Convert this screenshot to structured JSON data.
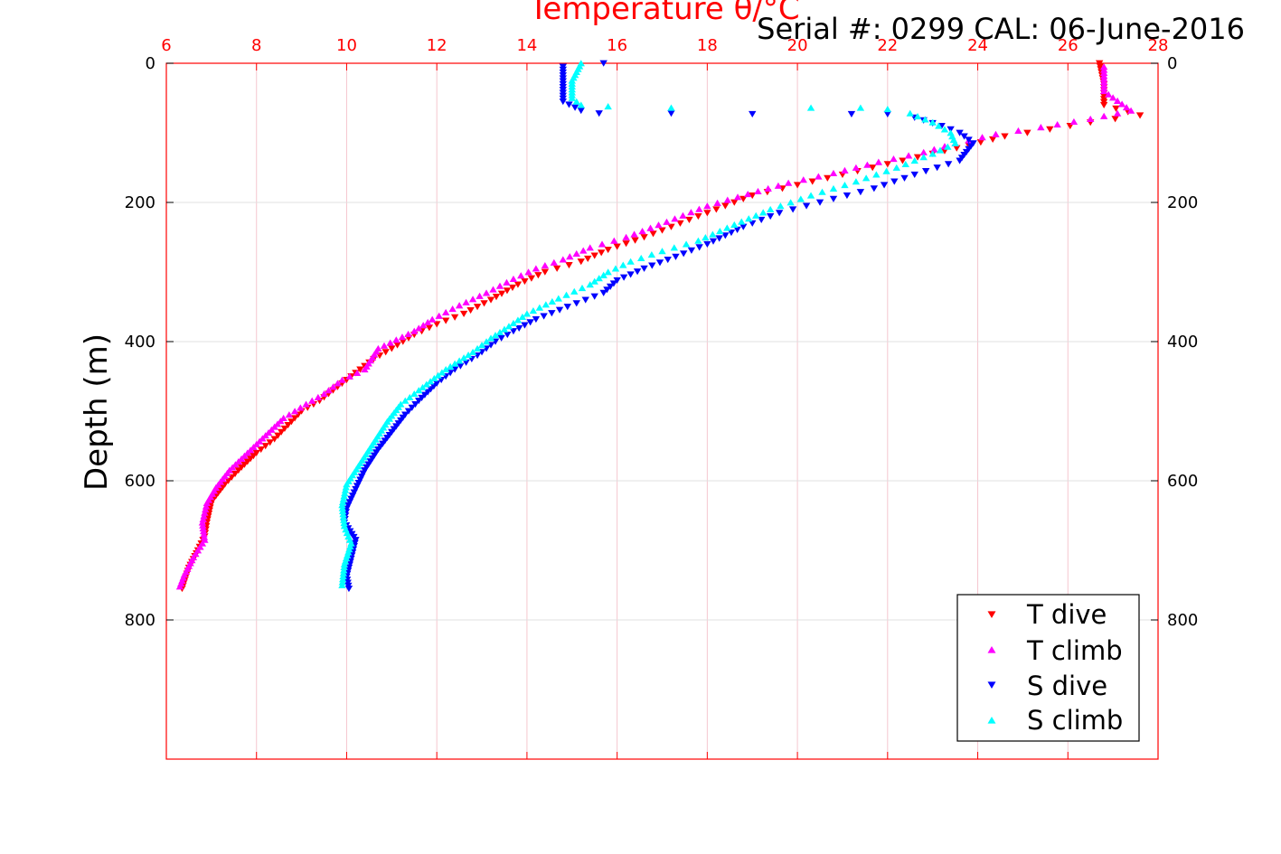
{
  "chart_data": {
    "type": "scatter",
    "title": "Temperature θ/°C",
    "subtitle": "Serial #: 0299 CAL: 06-June-2016",
    "xlabel": "Temperature θ/°C",
    "ylabel": "Depth (m)",
    "xlim": [
      6,
      28
    ],
    "ylim": [
      0,
      1000
    ],
    "y_reversed": true,
    "x_axis_position": "top",
    "x_ticks": [
      "6",
      "8",
      "10",
      "12",
      "14",
      "16",
      "18",
      "20",
      "22",
      "24",
      "26",
      "28"
    ],
    "y_ticks": [
      "0",
      "200",
      "400",
      "600",
      "800"
    ],
    "grid": true,
    "legend_position": "bottom-right",
    "colors": {
      "axis": "#ff0000",
      "grid": "#f5c6cf"
    },
    "series": [
      {
        "name": "T dive",
        "color": "#ff0000",
        "marker": "triangle-down",
        "points": [
          [
            26.7,
            0
          ],
          [
            26.8,
            30
          ],
          [
            26.8,
            60
          ],
          [
            27.6,
            75
          ],
          [
            26.5,
            85
          ],
          [
            25.6,
            95
          ],
          [
            24.6,
            105
          ],
          [
            23.8,
            118
          ],
          [
            23.0,
            130
          ],
          [
            22.0,
            145
          ],
          [
            21.0,
            160
          ],
          [
            20.0,
            175
          ],
          [
            19.0,
            190
          ],
          [
            18.2,
            210
          ],
          [
            17.4,
            230
          ],
          [
            16.6,
            250
          ],
          [
            15.8,
            268
          ],
          [
            15.2,
            285
          ],
          [
            14.4,
            300
          ],
          [
            13.8,
            318
          ],
          [
            13.2,
            340
          ],
          [
            12.6,
            360
          ],
          [
            12.0,
            375
          ],
          [
            11.5,
            390
          ],
          [
            11.0,
            410
          ],
          [
            10.6,
            425
          ],
          [
            10.2,
            445
          ],
          [
            9.8,
            465
          ],
          [
            9.4,
            485
          ],
          [
            9.0,
            500
          ],
          [
            8.7,
            520
          ],
          [
            8.4,
            540
          ],
          [
            8.0,
            560
          ],
          [
            7.6,
            585
          ],
          [
            7.3,
            605
          ],
          [
            7.0,
            630
          ],
          [
            6.9,
            660
          ],
          [
            6.85,
            680
          ],
          [
            6.7,
            700
          ],
          [
            6.5,
            725
          ],
          [
            6.35,
            755
          ]
        ]
      },
      {
        "name": "T climb",
        "color": "#ff00ff",
        "marker": "triangle-up",
        "points": [
          [
            26.8,
            5
          ],
          [
            26.8,
            40
          ],
          [
            27.4,
            68
          ],
          [
            26.5,
            80
          ],
          [
            25.4,
            92
          ],
          [
            24.4,
            102
          ],
          [
            23.5,
            115
          ],
          [
            22.8,
            128
          ],
          [
            21.8,
            142
          ],
          [
            20.8,
            158
          ],
          [
            19.8,
            172
          ],
          [
            18.9,
            188
          ],
          [
            18.0,
            205
          ],
          [
            17.1,
            228
          ],
          [
            16.2,
            250
          ],
          [
            15.4,
            265
          ],
          [
            14.8,
            282
          ],
          [
            14.2,
            295
          ],
          [
            13.7,
            310
          ],
          [
            13.1,
            330
          ],
          [
            12.5,
            348
          ],
          [
            11.9,
            368
          ],
          [
            11.5,
            385
          ],
          [
            10.7,
            410
          ],
          [
            10.4,
            440
          ],
          [
            9.9,
            455
          ],
          [
            9.5,
            475
          ],
          [
            9.1,
            490
          ],
          [
            8.6,
            510
          ],
          [
            8.2,
            535
          ],
          [
            7.8,
            560
          ],
          [
            7.4,
            585
          ],
          [
            7.1,
            610
          ],
          [
            6.9,
            632
          ],
          [
            6.8,
            660
          ],
          [
            6.85,
            685
          ],
          [
            6.6,
            710
          ],
          [
            6.4,
            735
          ],
          [
            6.3,
            752
          ]
        ]
      },
      {
        "name": "S dive",
        "color": "#0000ff",
        "marker": "triangle-down",
        "points": [
          [
            15.7,
            0
          ],
          [
            14.8,
            5
          ],
          [
            14.8,
            30
          ],
          [
            14.8,
            55
          ],
          [
            15.2,
            68
          ],
          [
            15.6,
            72
          ],
          [
            17.2,
            72
          ],
          [
            19.0,
            73
          ],
          [
            21.2,
            73
          ],
          [
            22.0,
            73
          ],
          [
            22.6,
            78
          ],
          [
            23.2,
            90
          ],
          [
            23.6,
            100
          ],
          [
            23.9,
            115
          ],
          [
            23.6,
            140
          ],
          [
            22.6,
            160
          ],
          [
            21.7,
            180
          ],
          [
            20.5,
            200
          ],
          [
            19.6,
            215
          ],
          [
            18.8,
            235
          ],
          [
            18.0,
            260
          ],
          [
            17.3,
            278
          ],
          [
            16.6,
            295
          ],
          [
            16.0,
            312
          ],
          [
            15.7,
            330
          ],
          [
            14.9,
            350
          ],
          [
            14.2,
            368
          ],
          [
            13.7,
            385
          ],
          [
            13.3,
            400
          ],
          [
            12.9,
            420
          ],
          [
            12.4,
            440
          ],
          [
            12.0,
            460
          ],
          [
            11.6,
            485
          ],
          [
            11.3,
            505
          ],
          [
            11.0,
            530
          ],
          [
            10.7,
            555
          ],
          [
            10.4,
            585
          ],
          [
            10.2,
            612
          ],
          [
            10.0,
            640
          ],
          [
            9.95,
            660
          ],
          [
            10.2,
            685
          ],
          [
            10.1,
            712
          ],
          [
            10.0,
            738
          ],
          [
            10.05,
            755
          ]
        ]
      },
      {
        "name": "S climb",
        "color": "#00ffff",
        "marker": "triangle-up",
        "points": [
          [
            15.2,
            0
          ],
          [
            15.0,
            25
          ],
          [
            15.0,
            50
          ],
          [
            15.2,
            60
          ],
          [
            15.8,
            62
          ],
          [
            17.2,
            64
          ],
          [
            20.3,
            64
          ],
          [
            21.4,
            64
          ],
          [
            22.0,
            66
          ],
          [
            22.5,
            72
          ],
          [
            23.0,
            85
          ],
          [
            23.4,
            100
          ],
          [
            23.5,
            115
          ],
          [
            23.0,
            130
          ],
          [
            22.2,
            150
          ],
          [
            21.3,
            170
          ],
          [
            20.3,
            190
          ],
          [
            19.4,
            210
          ],
          [
            18.6,
            232
          ],
          [
            17.8,
            255
          ],
          [
            17.0,
            270
          ],
          [
            16.3,
            285
          ],
          [
            15.8,
            300
          ],
          [
            15.4,
            318
          ],
          [
            14.7,
            338
          ],
          [
            14.0,
            360
          ],
          [
            13.6,
            378
          ],
          [
            13.2,
            395
          ],
          [
            12.8,
            415
          ],
          [
            12.2,
            440
          ],
          [
            11.6,
            470
          ],
          [
            11.2,
            490
          ],
          [
            10.9,
            515
          ],
          [
            10.6,
            545
          ],
          [
            10.3,
            575
          ],
          [
            10.0,
            605
          ],
          [
            9.9,
            635
          ],
          [
            9.95,
            665
          ],
          [
            10.1,
            690
          ],
          [
            9.95,
            720
          ],
          [
            9.9,
            750
          ]
        ]
      }
    ]
  }
}
